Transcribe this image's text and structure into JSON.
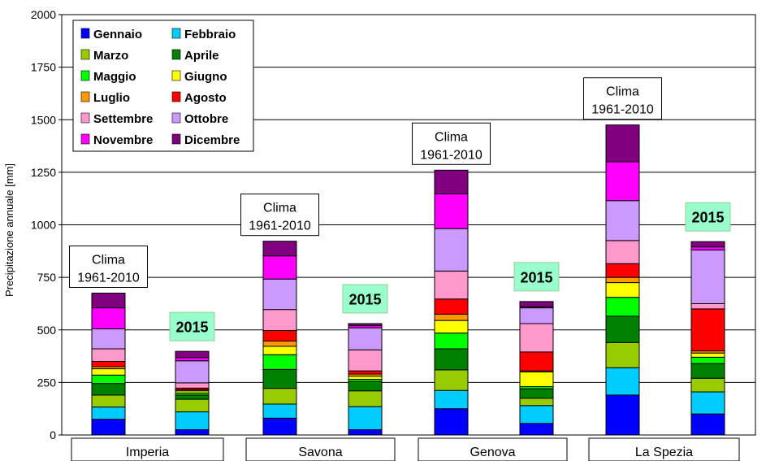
{
  "chart_data": {
    "type": "bar",
    "stacked": true,
    "ylabel": "Precipitazione annuale [mm]",
    "ylim": [
      0,
      2000
    ],
    "yticks": [
      0,
      250,
      500,
      750,
      1000,
      1250,
      1500,
      1750,
      2000
    ],
    "grid": true,
    "legend_position": "top-left",
    "groups": [
      "Imperia",
      "Savona",
      "Genova",
      "La Spezia"
    ],
    "bars": [
      {
        "group": "Imperia",
        "label_lines": [
          "Clima",
          "1961-2010"
        ],
        "label_kind": "clima",
        "values": [
          75,
          58,
          57,
          55,
          40,
          30,
          10,
          25,
          60,
          95,
          100,
          70
        ]
      },
      {
        "group": "Imperia",
        "label_lines": [
          "2015"
        ],
        "label_kind": "year",
        "values": [
          25,
          85,
          60,
          20,
          10,
          10,
          5,
          8,
          25,
          105,
          15,
          30
        ]
      },
      {
        "group": "Savona",
        "label_lines": [
          "Clima",
          "1961-2010"
        ],
        "label_kind": "clima",
        "values": [
          80,
          67,
          75,
          90,
          70,
          40,
          25,
          50,
          100,
          145,
          110,
          70
        ]
      },
      {
        "group": "Savona",
        "label_lines": [
          "2015"
        ],
        "label_kind": "year",
        "values": [
          25,
          110,
          75,
          45,
          10,
          15,
          10,
          15,
          100,
          105,
          10,
          10
        ]
      },
      {
        "group": "Genova",
        "label_lines": [
          "Clima",
          "1961-2010"
        ],
        "label_kind": "clima",
        "values": [
          125,
          87,
          98,
          100,
          75,
          60,
          30,
          72,
          133,
          202,
          165,
          113
        ]
      },
      {
        "group": "Genova",
        "label_lines": [
          "2015"
        ],
        "label_kind": "year",
        "values": [
          55,
          85,
          35,
          45,
          10,
          70,
          5,
          90,
          135,
          75,
          5,
          25
        ]
      },
      {
        "group": "La Spezia",
        "label_lines": [
          "Clima",
          "1961-2010"
        ],
        "label_kind": "clima",
        "values": [
          190,
          130,
          120,
          125,
          90,
          70,
          25,
          65,
          110,
          190,
          185,
          175
        ]
      },
      {
        "group": "La Spezia",
        "label_lines": [
          "2015"
        ],
        "label_kind": "year",
        "values": [
          100,
          105,
          65,
          70,
          30,
          20,
          10,
          200,
          25,
          255,
          15,
          25
        ]
      }
    ],
    "series": [
      {
        "name": "Gennaio",
        "color": "#0000ff"
      },
      {
        "name": "Febbraio",
        "color": "#00ccff"
      },
      {
        "name": "Marzo",
        "color": "#99cc00"
      },
      {
        "name": "Aprile",
        "color": "#008000"
      },
      {
        "name": "Maggio",
        "color": "#00ff00"
      },
      {
        "name": "Giugno",
        "color": "#ffff00"
      },
      {
        "name": "Luglio",
        "color": "#ff9900"
      },
      {
        "name": "Agosto",
        "color": "#ff0000"
      },
      {
        "name": "Settembre",
        "color": "#ff99cc"
      },
      {
        "name": "Ottobre",
        "color": "#cc99ff"
      },
      {
        "name": "Novembre",
        "color": "#ff00ff"
      },
      {
        "name": "Dicembre",
        "color": "#800080"
      }
    ],
    "label_colors": {
      "clima_bg": "#ffffff",
      "year_bg": "#99ffcc"
    }
  }
}
